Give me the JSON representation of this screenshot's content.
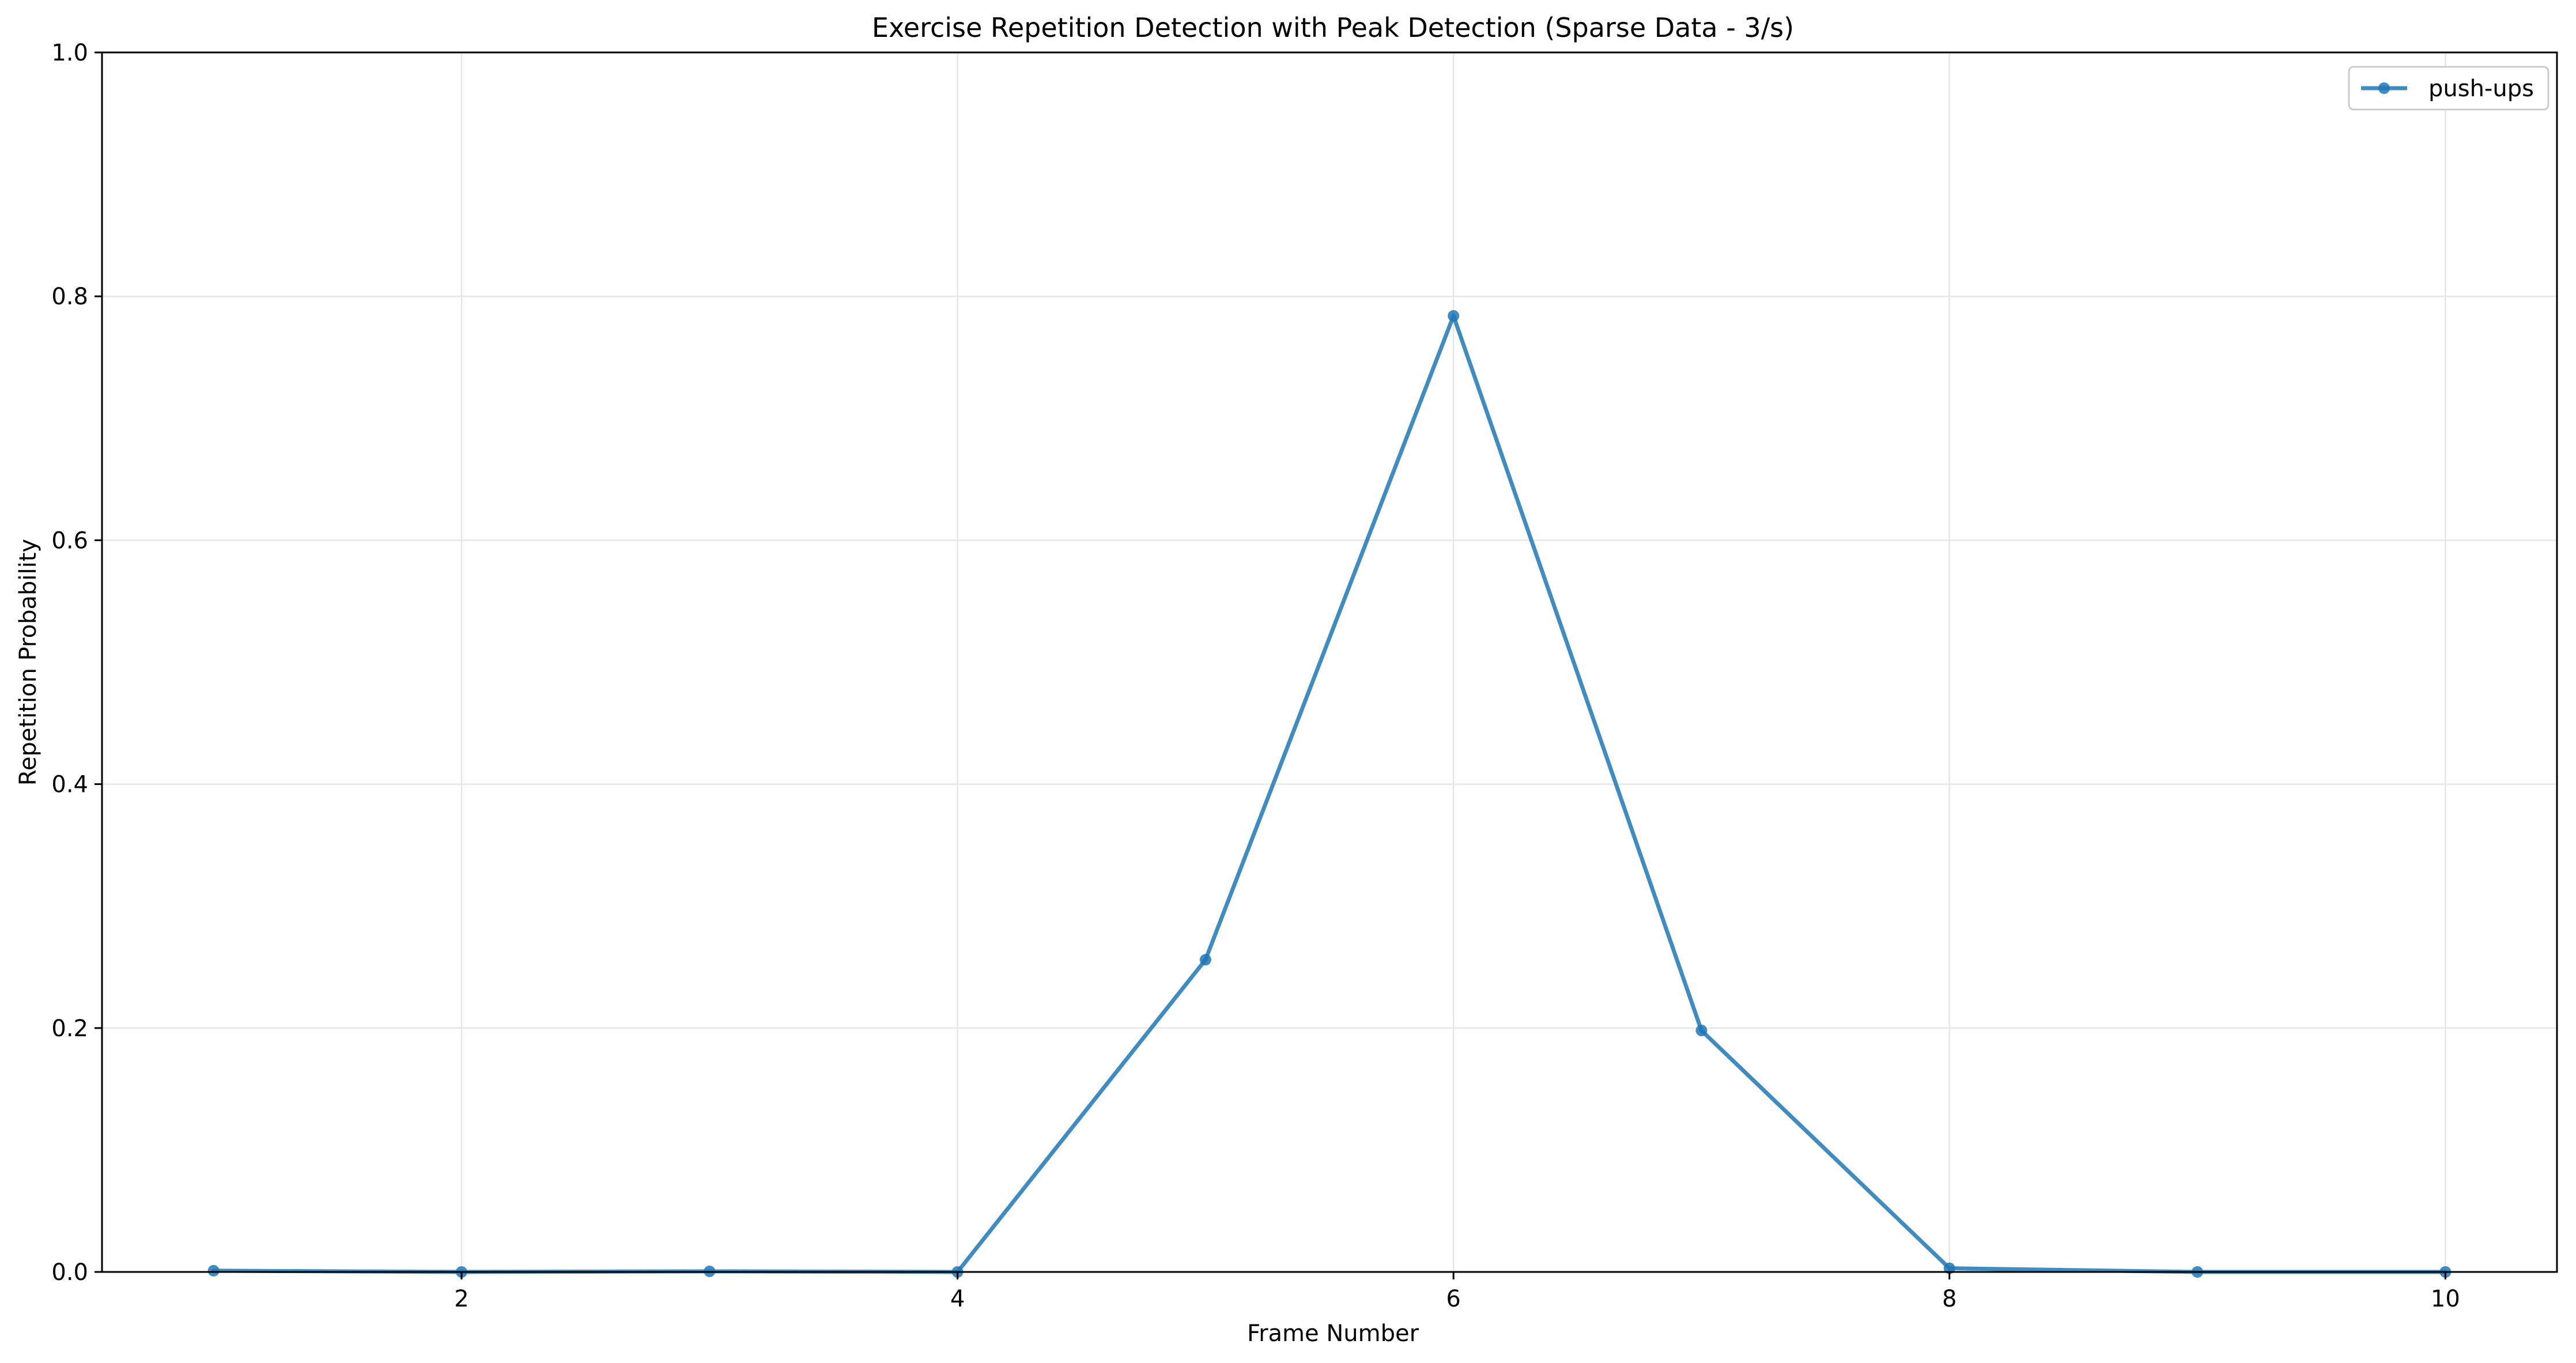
{
  "chart_data": {
    "type": "line",
    "title": "Exercise Repetition Detection with Peak Detection (Sparse Data - 3/s)",
    "xlabel": "Frame Number",
    "ylabel": "Repetition Probability",
    "xlim": [
      0.55,
      10.45
    ],
    "ylim": [
      0,
      1.0
    ],
    "x_ticks": [
      2,
      4,
      6,
      8,
      10
    ],
    "x_tick_labels": [
      "2",
      "4",
      "6",
      "8",
      "10"
    ],
    "y_ticks": [
      0.0,
      0.2,
      0.4,
      0.6,
      0.8,
      1.0
    ],
    "y_tick_labels": [
      "0.0",
      "0.2",
      "0.4",
      "0.6",
      "0.8",
      "1.0"
    ],
    "grid": true,
    "legend_position": "top-right",
    "series": [
      {
        "name": "push-ups",
        "color": "#1f77b4",
        "marker": "circle",
        "x": [
          1,
          2,
          3,
          4,
          5,
          6,
          7,
          8,
          9,
          10
        ],
        "y": [
          0.001,
          0.0,
          0.0005,
          0.0,
          0.256,
          0.784,
          0.198,
          0.003,
          0.0,
          0.0
        ]
      }
    ]
  }
}
